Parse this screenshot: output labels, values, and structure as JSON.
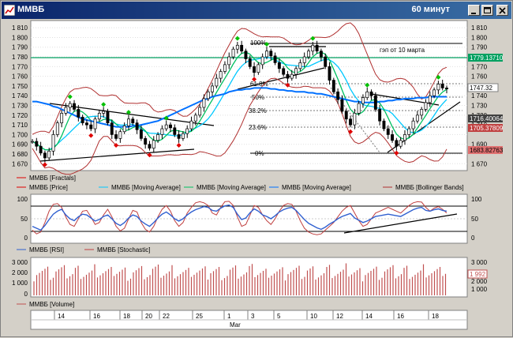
{
  "window": {
    "title": "ММВБ",
    "timeframe": "60 минут"
  },
  "colors": {
    "price": "#000000",
    "ma_light": "#00c8ff",
    "ma_green": "#00c060",
    "ma_blue": "#0070ff",
    "bollinger": "#b03030",
    "fractal_up": "#00c000",
    "fractal_down": "#e00000",
    "rsi": "#3060d0",
    "stoch": "#c04040",
    "volume": "#c05050",
    "level_green": "#00a060"
  },
  "price_panel": {
    "y_ticks": [
      "1 810",
      "1 800",
      "1 790",
      "1 780",
      "1 770",
      "1 760",
      "1 750",
      "1 740",
      "1 730",
      "1 720",
      "1 710",
      "1 700",
      "1 690",
      "1 680",
      "1 670"
    ],
    "right_ticks": [
      "1 810",
      "1 800",
      "1 790",
      "1 770",
      "1 760",
      "1 750",
      "1 740",
      "1 730",
      "1 720",
      "1 710",
      "1 690",
      "1 670"
    ],
    "fib_labels": [
      "100%",
      "61.8%",
      "50%",
      "38.2%",
      "23.6%",
      "0%"
    ],
    "annotation": "гэп от 10 марта",
    "badges": {
      "level": "1779.13710",
      "last": "1747.32",
      "ma1": "1716.40064",
      "ma2": "1705.37809",
      "bb_low": "1683.82763"
    }
  },
  "legend1": {
    "items": [
      "ММВБ [Fractals]",
      "ММВБ [Price]",
      "ММВБ [Moving Average]",
      "ММВБ [Moving Average]",
      "ММВБ [Moving Average]",
      "ММВБ [Bollinger Bands]"
    ]
  },
  "osc_panel": {
    "left_ticks": [
      "100",
      "50",
      "0"
    ],
    "right_ticks": [
      "100",
      "50",
      "0"
    ]
  },
  "legend2": {
    "items": [
      "ММВБ [RSI]",
      "ММВБ [Stochastic]"
    ]
  },
  "vol_panel": {
    "left_ticks": [
      "3 000",
      "2 000",
      "1 000",
      "0"
    ],
    "right_ticks": [
      "3 000",
      "2 000",
      "1 000"
    ],
    "badge": "1 992"
  },
  "legend3": {
    "items": [
      "ММВБ [Volume]"
    ]
  },
  "time_axis": {
    "days": [
      "14",
      "16",
      "18",
      "20",
      "22",
      "25",
      "1",
      "3",
      "5",
      "10",
      "12",
      "14",
      "16",
      "18"
    ],
    "month": "Mar"
  },
  "chart_data": {
    "type": "line",
    "title": "",
    "ylim": [
      1667,
      1815
    ],
    "price": [
      1693,
      1688,
      1681,
      1676,
      1683,
      1700,
      1712,
      1722,
      1728,
      1732,
      1726,
      1718,
      1712,
      1710,
      1706,
      1716,
      1722,
      1724,
      1712,
      1700,
      1696,
      1703,
      1709,
      1716,
      1712,
      1705,
      1696,
      1690,
      1686,
      1694,
      1700,
      1706,
      1710,
      1707,
      1700,
      1696,
      1701,
      1706,
      1714,
      1720,
      1728,
      1737,
      1744,
      1750,
      1758,
      1765,
      1772,
      1780,
      1788,
      1792,
      1786,
      1778,
      1770,
      1764,
      1772,
      1780,
      1786,
      1781,
      1774,
      1768,
      1762,
      1758,
      1762,
      1768,
      1774,
      1780,
      1786,
      1792,
      1786,
      1780,
      1770,
      1756,
      1744,
      1736,
      1724,
      1716,
      1710,
      1722,
      1732,
      1738,
      1744,
      1740,
      1726,
      1714,
      1706,
      1700,
      1694,
      1688,
      1694,
      1700,
      1706,
      1714,
      1720,
      1726,
      1733,
      1740,
      1746,
      1752,
      1748,
      1747
    ],
    "ma_blue": [
      1734,
      1734,
      1733,
      1732,
      1731,
      1729,
      1728,
      1726,
      1724,
      1722,
      1720,
      1718,
      1716,
      1715,
      1714,
      1713,
      1712,
      1711,
      1710,
      1709,
      1708,
      1708,
      1708,
      1708,
      1709,
      1709,
      1710,
      1711,
      1712,
      1713,
      1714,
      1716,
      1718,
      1720,
      1722,
      1724,
      1726,
      1728,
      1730,
      1732,
      1734,
      1736,
      1737,
      1739,
      1740,
      1741,
      1742,
      1744,
      1745,
      1746,
      1746,
      1747,
      1747,
      1748,
      1748,
      1748,
      1748,
      1747,
      1747,
      1746,
      1746,
      1745,
      1745,
      1744,
      1744,
      1744,
      1743,
      1743,
      1742,
      1742,
      1741,
      1740,
      1739,
      1738,
      1737,
      1736,
      1735,
      1734,
      1734,
      1733,
      1733,
      1733,
      1733,
      1734,
      1734,
      1735,
      1735,
      1736,
      1736,
      1737,
      1737,
      1737,
      1738,
      1738,
      1738,
      1739,
      1739,
      1739,
      1739,
      1739
    ],
    "rsi": [
      30,
      25,
      20,
      32,
      48,
      62,
      70,
      75,
      60,
      50,
      45,
      55,
      62,
      60,
      52,
      44,
      48,
      56,
      60,
      50,
      38,
      32,
      40,
      52,
      60,
      56,
      44,
      36,
      30,
      40,
      52,
      62,
      68,
      60,
      50,
      44,
      50,
      60,
      68,
      74,
      78,
      82,
      80,
      72,
      70,
      78,
      84,
      86,
      80,
      62,
      48,
      52,
      66,
      76,
      70,
      60,
      56,
      50,
      58,
      68,
      74,
      78,
      80,
      72,
      60,
      48,
      38,
      32,
      26,
      22,
      28,
      36,
      42,
      50,
      56,
      60,
      64,
      52,
      46,
      40,
      44,
      50,
      56,
      58,
      60,
      62,
      60,
      58,
      56,
      62,
      68,
      74,
      78,
      80,
      72,
      70,
      74,
      76,
      72,
      70
    ],
    "stoch": [
      20,
      10,
      15,
      40,
      70,
      88,
      90,
      80,
      55,
      35,
      30,
      50,
      70,
      72,
      55,
      35,
      40,
      60,
      75,
      55,
      30,
      18,
      25,
      50,
      72,
      68,
      40,
      22,
      15,
      30,
      55,
      75,
      85,
      70,
      45,
      30,
      40,
      65,
      80,
      92,
      95,
      92,
      85,
      65,
      60,
      80,
      95,
      96,
      85,
      55,
      30,
      35,
      60,
      85,
      80,
      60,
      45,
      35,
      50,
      70,
      85,
      90,
      88,
      70,
      45,
      25,
      15,
      10,
      8,
      10,
      20,
      30,
      40,
      55,
      70,
      80,
      85,
      65,
      45,
      30,
      35,
      50,
      65,
      70,
      75,
      80,
      75,
      70,
      65,
      75,
      85,
      92,
      95,
      94,
      80,
      70,
      78,
      82,
      75,
      65
    ]
  }
}
